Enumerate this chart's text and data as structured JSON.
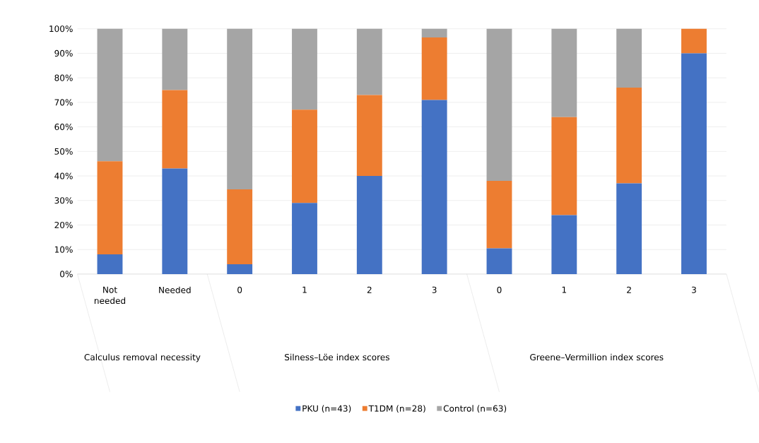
{
  "chart_data": {
    "type": "bar",
    "stacked": true,
    "categories": [
      "Not needed",
      "Needed",
      "0",
      "1",
      "2",
      "3",
      "0",
      "1",
      "2",
      "3"
    ],
    "series": [
      {
        "name": "PKU (n=43)",
        "color": "#4472c4",
        "values": [
          8,
          43,
          4,
          29,
          40,
          71,
          10.5,
          24,
          37,
          90
        ]
      },
      {
        "name": "T1DM  (n=28)",
        "color": "#ed7d31",
        "values": [
          38,
          32,
          30.5,
          38,
          33,
          25.5,
          27.5,
          40,
          39,
          10
        ]
      },
      {
        "name": "Control (n=63)",
        "color": "#a5a5a5",
        "values": [
          54,
          25,
          65.5,
          33,
          27,
          3.5,
          62,
          36,
          24,
          0
        ]
      }
    ],
    "ylim": [
      0,
      100
    ],
    "yticks": [
      {
        "value": 0,
        "label": "0%"
      },
      {
        "value": 10,
        "label": "10%"
      },
      {
        "value": 20,
        "label": "20%"
      },
      {
        "value": 30,
        "label": "30%"
      },
      {
        "value": 40,
        "label": "40%"
      },
      {
        "value": 50,
        "label": "50%"
      },
      {
        "value": 60,
        "label": "60%"
      },
      {
        "value": 70,
        "label": "70%"
      },
      {
        "value": 80,
        "label": "80%"
      },
      {
        "value": 90,
        "label": "90%"
      },
      {
        "value": 100,
        "label": "100%"
      }
    ],
    "grid": "y",
    "legend": "bottom",
    "annotations": [
      "Calculus removal necessity",
      "Silness–Löe index scores",
      "Greene–Vermillion index scores"
    ]
  }
}
